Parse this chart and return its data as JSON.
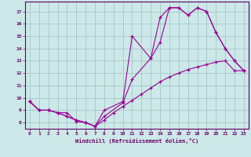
{
  "xlabel": "Windchill (Refroidissement éolien,°C)",
  "background_color": "#cce8e8",
  "grid_color": "#aacccc",
  "line_color": "#990099",
  "xlim": [
    -0.5,
    23.5
  ],
  "ylim": [
    7.5,
    17.8
  ],
  "yticks": [
    8,
    9,
    10,
    11,
    12,
    13,
    14,
    15,
    16,
    17
  ],
  "xticks": [
    0,
    1,
    2,
    3,
    4,
    5,
    6,
    7,
    8,
    9,
    10,
    11,
    12,
    13,
    14,
    15,
    16,
    17,
    18,
    19,
    20,
    21,
    22,
    23
  ],
  "lines": [
    {
      "x": [
        0,
        1,
        2,
        3,
        4,
        5,
        6,
        7,
        8,
        10,
        11,
        13,
        14,
        15,
        16,
        17,
        18,
        19,
        20,
        21,
        22,
        23
      ],
      "y": [
        9.7,
        9.0,
        9.0,
        8.8,
        8.5,
        8.2,
        8.0,
        7.7,
        9.0,
        9.7,
        15.0,
        13.2,
        14.5,
        17.3,
        17.3,
        16.7,
        17.3,
        17.0,
        15.3,
        14.0,
        13.0,
        12.2
      ]
    },
    {
      "x": [
        0,
        1,
        2,
        3,
        4,
        5,
        6,
        7,
        8,
        10,
        11,
        13,
        14,
        15,
        16,
        17,
        18,
        19,
        20,
        21,
        22,
        23
      ],
      "y": [
        9.7,
        9.0,
        9.0,
        8.8,
        8.8,
        8.1,
        8.0,
        7.7,
        8.5,
        9.6,
        11.5,
        13.2,
        16.5,
        17.3,
        17.3,
        16.7,
        17.3,
        17.0,
        15.3,
        14.0,
        13.0,
        12.2
      ]
    },
    {
      "x": [
        0,
        1,
        2,
        3,
        4,
        5,
        6,
        7,
        8,
        9,
        10,
        11,
        12,
        13,
        14,
        15,
        16,
        17,
        18,
        19,
        20,
        21,
        22,
        23
      ],
      "y": [
        9.7,
        9.0,
        9.0,
        8.8,
        8.5,
        8.2,
        8.0,
        7.7,
        8.2,
        8.8,
        9.3,
        9.8,
        10.3,
        10.8,
        11.3,
        11.7,
        12.0,
        12.3,
        12.5,
        12.7,
        12.9,
        13.0,
        12.2,
        12.2
      ]
    }
  ]
}
